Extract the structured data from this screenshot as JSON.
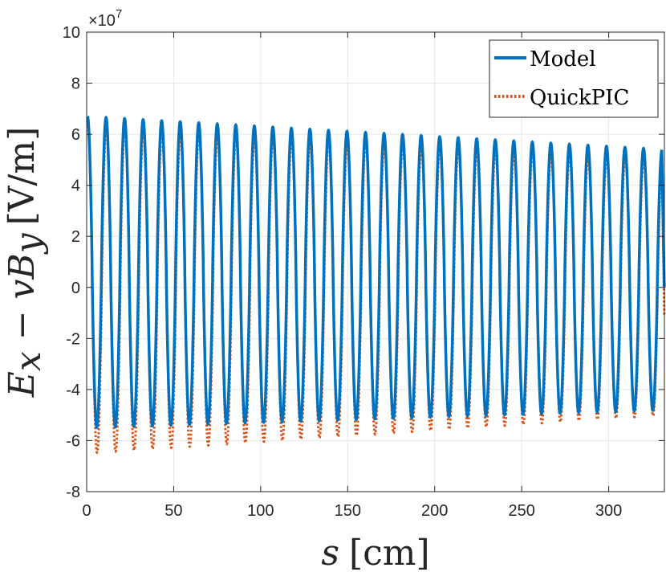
{
  "chart_data": {
    "type": "line",
    "xlabel_var": "s",
    "xlabel_unit": "[cm]",
    "ylabel_main": "E",
    "ylabel_sub": "x",
    "ylabel_mid": " − v",
    "ylabel_main2": "B",
    "ylabel_sub2": "y",
    "ylabel_unit": "[V/m]",
    "xlim": [
      0,
      332
    ],
    "ylim": [
      -8,
      10
    ],
    "y_scale_exponent": "×10",
    "y_scale_power": "7",
    "xticks": [
      0,
      50,
      100,
      150,
      200,
      250,
      300
    ],
    "xtick_labels": [
      "0",
      "50",
      "100",
      "150",
      "200",
      "250",
      "300"
    ],
    "yticks": [
      -8,
      -6,
      -4,
      -2,
      0,
      2,
      4,
      6,
      8,
      10
    ],
    "ytick_labels": [
      "-8",
      "-6",
      "-4",
      "-2",
      "0",
      "2",
      "4",
      "6",
      "8",
      "10"
    ],
    "grid": true,
    "legend_position": "top-right",
    "period_cm": 10.65,
    "series": [
      {
        "name": "Model",
        "color": "#0072BD",
        "style": "solid",
        "max_start": 6.7,
        "max_end": 5.4,
        "min_start": -5.5,
        "min_end": -4.8
      },
      {
        "name": "QuickPIC",
        "color": "#D95319",
        "style": "dotted",
        "max_start": 6.3,
        "max_end": 5.0,
        "min_start": -6.5,
        "min_end": -5.0
      }
    ]
  }
}
